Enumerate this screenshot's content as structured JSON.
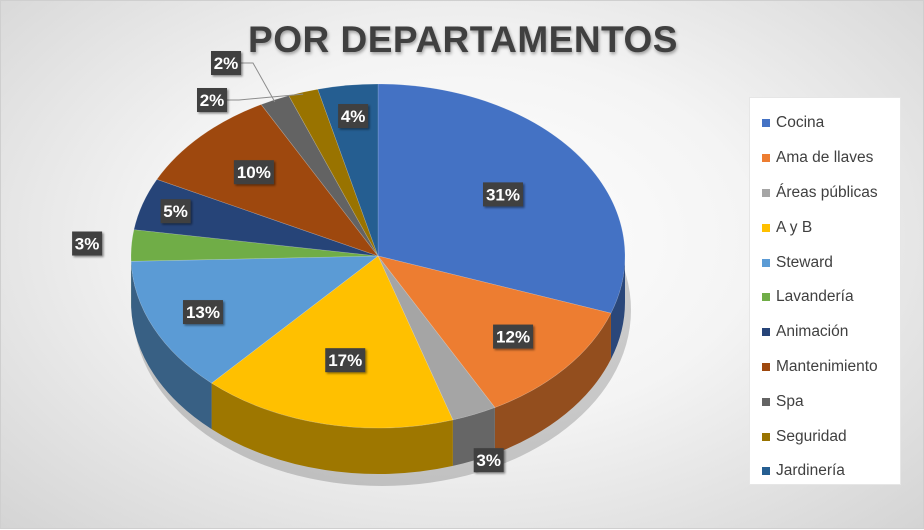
{
  "chart_data": {
    "type": "pie",
    "title": "POR DEPARTAMENTOS",
    "categories": [
      "Cocina",
      "Ama de llaves",
      "Áreas públicas",
      "A y B",
      "Steward",
      "Lavandería",
      "Animación",
      "Mantenimiento",
      "Spa",
      "Seguridad",
      "Jardinería"
    ],
    "values": [
      31,
      12,
      3,
      17,
      13,
      3,
      5,
      10,
      2,
      2,
      4
    ],
    "data_labels": [
      "31%",
      "12%",
      "3%",
      "17%",
      "13%",
      "3%",
      "5%",
      "10%",
      "2%",
      "2%",
      "4%"
    ],
    "colors": [
      "#4472c4",
      "#ed7d31",
      "#a5a5a5",
      "#ffc000",
      "#5b9bd5",
      "#70ad47",
      "#264478",
      "#9e480e",
      "#636363",
      "#997300",
      "#255e91"
    ],
    "legend_position": "right",
    "style": "3d-pie"
  }
}
